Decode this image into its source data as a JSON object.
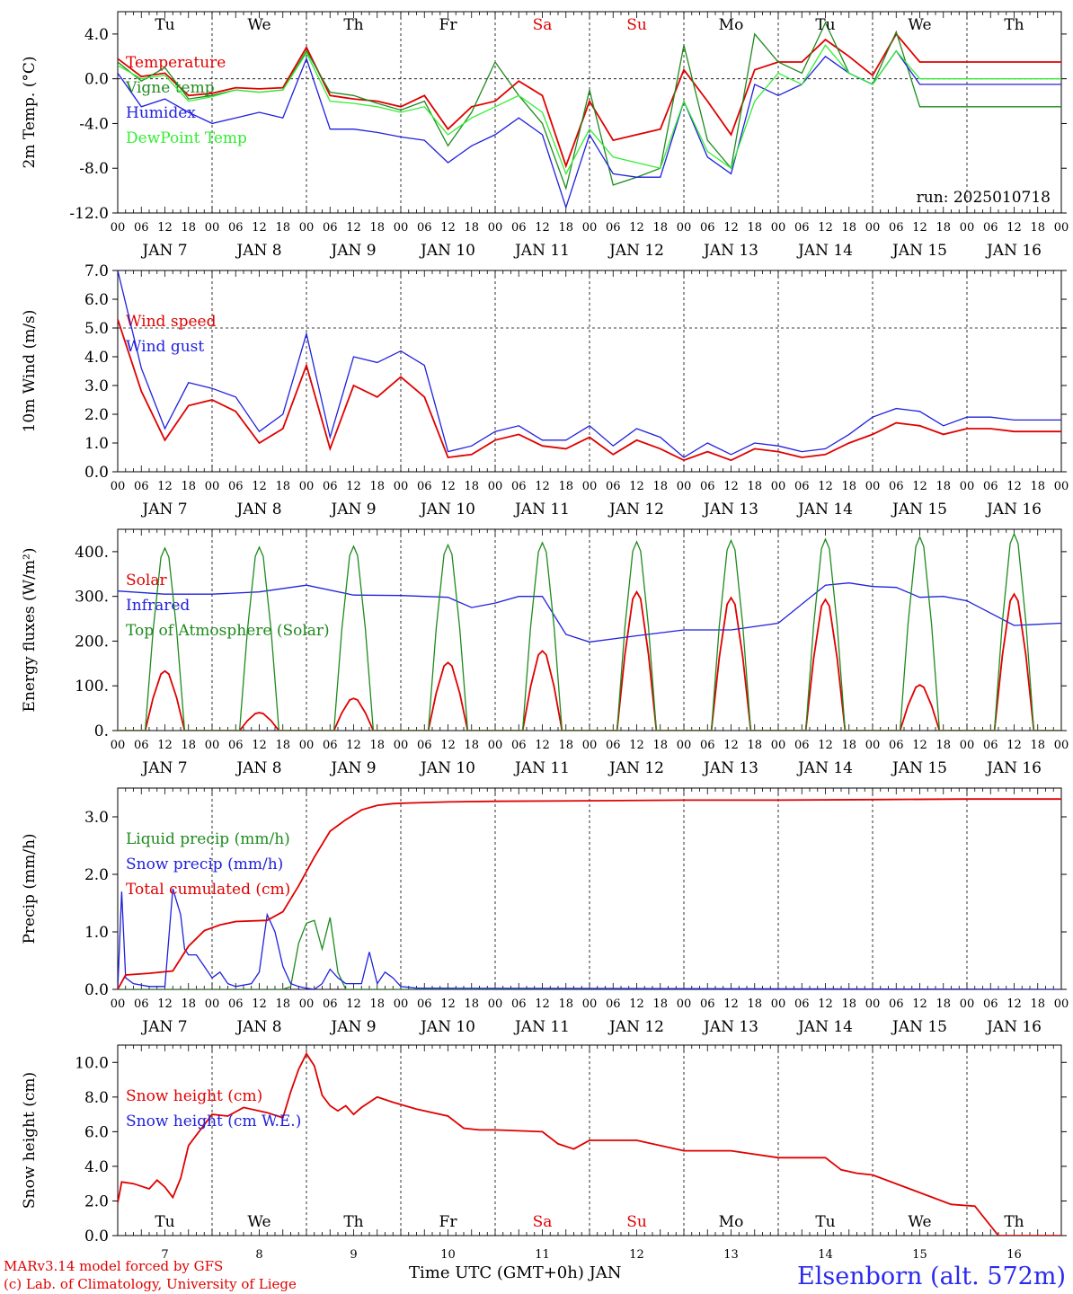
{
  "station": "Elsenborn (alt. 572m)",
  "credits": [
    "MARv3.14 model forced by GFS",
    "(c) Lab. of Climatology, University of Liege"
  ],
  "time_axis_label": "Time UTC (GMT+0h) JAN",
  "day_labels": [
    "Tu",
    "We",
    "Th",
    "Fr",
    "Sa",
    "Su",
    "Mo",
    "Tu",
    "We",
    "Th"
  ],
  "weekend_color": "#e00000",
  "hour_ticks": [
    "00",
    "06",
    "12",
    "18"
  ],
  "date_labels": [
    "JAN  7",
    "JAN  8",
    "JAN  9",
    "JAN 10",
    "JAN 11",
    "JAN 12",
    "JAN 13",
    "JAN 14",
    "JAN 15",
    "JAN 16"
  ],
  "bottom_dates": [
    "7",
    "8",
    "9",
    "10",
    "11",
    "12",
    "13",
    "14",
    "15",
    "16"
  ],
  "chart_data": [
    {
      "type": "line",
      "ylabel": "2m Temp. (°C)",
      "ylim": [
        -12,
        6
      ],
      "yticks": [
        "4.0",
        "0.0",
        "-4.0",
        "-8.0",
        "-12.0"
      ],
      "ytick_values": [
        4,
        0,
        -4,
        -8,
        -12
      ],
      "annotation": "run: 2025010718",
      "x_unit": "hours since JAN 7 00 UTC",
      "series": [
        {
          "name": "Temperature",
          "color": "#e00000",
          "x": [
            0,
            6,
            12,
            18,
            24,
            30,
            36,
            42,
            48,
            54,
            60,
            66,
            72,
            78,
            84,
            90,
            96,
            102,
            108,
            114,
            120,
            126,
            132,
            138,
            144,
            150,
            156,
            162,
            168,
            174,
            180,
            186,
            192,
            198,
            204,
            210,
            216,
            222,
            228,
            234,
            240
          ],
          "y": [
            1.8,
            0.2,
            0.5,
            -1.5,
            -1.3,
            -0.8,
            -0.9,
            -0.8,
            2.8,
            -1.5,
            -1.8,
            -2.0,
            -2.5,
            -1.5,
            -4.5,
            -2.5,
            -2.0,
            -0.2,
            -1.5,
            -7.8,
            -2.0,
            -5.5,
            -5.0,
            -4.5,
            0.8,
            -2.0,
            -5.0,
            0.8,
            1.5,
            1.5,
            3.5,
            2.0,
            0.3,
            4.0,
            1.5,
            1.5,
            1.5,
            1.5,
            1.5,
            1.5,
            1.5
          ]
        },
        {
          "name": "Vigne temp",
          "color": "#1e8a1e",
          "x": [
            0,
            6,
            12,
            18,
            24,
            30,
            36,
            42,
            48,
            54,
            60,
            66,
            72,
            78,
            84,
            90,
            96,
            102,
            108,
            114,
            120,
            126,
            132,
            138,
            144,
            150,
            156,
            162,
            168,
            174,
            180,
            186,
            192,
            198,
            204,
            210,
            216,
            222,
            228,
            234,
            240
          ],
          "y": [
            1.5,
            -0.2,
            1.0,
            -1.8,
            -1.5,
            -1.0,
            -1.2,
            -1.0,
            2.5,
            -1.2,
            -1.5,
            -2.2,
            -2.8,
            -2.0,
            -6.0,
            -3.0,
            1.5,
            -1.5,
            -4.0,
            -9.8,
            -1.0,
            -9.5,
            -8.8,
            -8.0,
            3.0,
            -5.5,
            -8.0,
            4.0,
            1.5,
            0.5,
            5.0,
            0.5,
            -0.5,
            4.2,
            -2.5,
            -2.5,
            -2.5,
            -2.5,
            -2.5,
            -2.5,
            -2.5
          ]
        },
        {
          "name": "Humidex",
          "color": "#2020dd",
          "x": [
            0,
            6,
            12,
            18,
            24,
            30,
            36,
            42,
            48,
            54,
            60,
            66,
            72,
            78,
            84,
            90,
            96,
            102,
            108,
            114,
            120,
            126,
            132,
            138,
            144,
            150,
            156,
            162,
            168,
            174,
            180,
            186,
            192,
            198,
            204,
            210,
            216,
            222,
            228,
            234,
            240
          ],
          "y": [
            0.5,
            -2.5,
            -1.8,
            -3.0,
            -4.0,
            -3.5,
            -3.0,
            -3.5,
            1.8,
            -4.5,
            -4.5,
            -4.8,
            -5.2,
            -5.5,
            -7.5,
            -6.0,
            -5.0,
            -3.5,
            -5.0,
            -11.5,
            -5.0,
            -8.5,
            -8.8,
            -8.8,
            -2.0,
            -7.0,
            -8.5,
            -0.5,
            -1.5,
            -0.5,
            2.0,
            0.5,
            -0.5,
            2.5,
            -0.5,
            -0.5,
            -0.5,
            -0.5,
            -0.5,
            -0.5,
            -0.5
          ]
        },
        {
          "name": "DewPoint Temp",
          "color": "#33ee33",
          "x": [
            0,
            6,
            12,
            18,
            24,
            30,
            36,
            42,
            48,
            54,
            60,
            66,
            72,
            78,
            84,
            90,
            96,
            102,
            108,
            114,
            120,
            126,
            132,
            138,
            144,
            150,
            156,
            162,
            168,
            174,
            180,
            186,
            192,
            198,
            204,
            210,
            216,
            222,
            228,
            234,
            240
          ],
          "y": [
            1.2,
            0.0,
            0.3,
            -2.0,
            -1.6,
            -1.0,
            -1.2,
            -1.0,
            2.3,
            -2.0,
            -2.2,
            -2.5,
            -3.0,
            -2.5,
            -5.0,
            -3.5,
            -2.5,
            -1.5,
            -3.0,
            -8.5,
            -4.5,
            -7.0,
            -7.5,
            -8.0,
            -2.0,
            -6.5,
            -8.0,
            -2.0,
            0.5,
            -0.5,
            3.0,
            0.5,
            -0.5,
            2.5,
            0.0,
            0.0,
            0.0,
            0.0,
            0.0,
            0.0,
            0.0
          ]
        }
      ]
    },
    {
      "type": "line",
      "ylabel": "10m Wind (m/s)",
      "ylim": [
        0,
        7
      ],
      "yticks": [
        "7.0",
        "6.0",
        "5.0",
        "4.0",
        "3.0",
        "2.0",
        "1.0",
        "0.0"
      ],
      "ytick_values": [
        7,
        6,
        5,
        4,
        3,
        2,
        1,
        0
      ],
      "x_unit": "hours since JAN 7 00 UTC",
      "series": [
        {
          "name": "Wind speed",
          "color": "#e00000",
          "x": [
            0,
            6,
            12,
            18,
            24,
            30,
            36,
            42,
            48,
            54,
            60,
            66,
            72,
            78,
            84,
            90,
            96,
            102,
            108,
            114,
            120,
            126,
            132,
            138,
            144,
            150,
            156,
            162,
            168,
            174,
            180,
            186,
            192,
            198,
            204,
            210,
            216,
            222,
            228,
            234,
            240
          ],
          "y": [
            5.3,
            2.8,
            1.1,
            2.3,
            2.5,
            2.1,
            1.0,
            1.5,
            3.7,
            0.8,
            3.0,
            2.6,
            3.3,
            2.6,
            0.5,
            0.6,
            1.1,
            1.3,
            0.9,
            0.8,
            1.2,
            0.6,
            1.1,
            0.8,
            0.4,
            0.7,
            0.4,
            0.8,
            0.7,
            0.5,
            0.6,
            1.0,
            1.3,
            1.7,
            1.6,
            1.3,
            1.5,
            1.5,
            1.4,
            1.4,
            1.4
          ]
        },
        {
          "name": "Wind gust",
          "color": "#2020dd",
          "x": [
            0,
            6,
            12,
            18,
            24,
            30,
            36,
            42,
            48,
            54,
            60,
            66,
            72,
            78,
            84,
            90,
            96,
            102,
            108,
            114,
            120,
            126,
            132,
            138,
            144,
            150,
            156,
            162,
            168,
            174,
            180,
            186,
            192,
            198,
            204,
            210,
            216,
            222,
            228,
            234,
            240
          ],
          "y": [
            7.0,
            3.6,
            1.5,
            3.1,
            2.9,
            2.6,
            1.4,
            2.0,
            4.8,
            1.2,
            4.0,
            3.8,
            4.2,
            3.7,
            0.7,
            0.9,
            1.4,
            1.6,
            1.1,
            1.1,
            1.6,
            0.9,
            1.5,
            1.2,
            0.5,
            1.0,
            0.6,
            1.0,
            0.9,
            0.7,
            0.8,
            1.3,
            1.9,
            2.2,
            2.1,
            1.6,
            1.9,
            1.9,
            1.8,
            1.8,
            1.8
          ]
        }
      ]
    },
    {
      "type": "line",
      "ylabel": "Energy fluxes (W/m²)",
      "ylim": [
        0,
        450
      ],
      "yticks": [
        "400.",
        "300.",
        "200.",
        "100.",
        "0."
      ],
      "ytick_values": [
        400,
        300,
        200,
        100,
        0
      ],
      "x_unit": "hours since JAN 7 00 UTC",
      "series": [
        {
          "name": "Solar",
          "color": "#e00000",
          "kind": "daily_peaks",
          "peaks": [
            133,
            40,
            72,
            152,
            178,
            310,
            297,
            293,
            102,
            305
          ]
        },
        {
          "name": "Infrared",
          "color": "#2020dd",
          "x": [
            0,
            12,
            24,
            36,
            48,
            60,
            72,
            84,
            90,
            96,
            102,
            108,
            114,
            120,
            132,
            144,
            156,
            168,
            180,
            186,
            192,
            198,
            204,
            210,
            216,
            228,
            240
          ],
          "y": [
            312,
            305,
            305,
            310,
            325,
            303,
            302,
            298,
            275,
            285,
            300,
            300,
            215,
            198,
            212,
            225,
            225,
            240,
            325,
            330,
            322,
            320,
            298,
            300,
            290,
            235,
            240
          ]
        },
        {
          "name": "Top of Atmosphere (Solar)",
          "color": "#1e8a1e",
          "kind": "daily_peaks",
          "peaks": [
            408,
            410,
            412,
            415,
            420,
            422,
            425,
            428,
            433,
            440
          ]
        }
      ]
    },
    {
      "type": "line",
      "ylabel": "Precip (mm/h)",
      "ylim": [
        0,
        3.5
      ],
      "yticks": [
        "3.0",
        "2.0",
        "1.0",
        "0.0"
      ],
      "ytick_values": [
        3,
        2,
        1,
        0
      ],
      "x_unit": "hours since JAN 7 00 UTC",
      "series": [
        {
          "name": "Liquid precip (mm/h)",
          "color": "#1e8a1e",
          "x": [
            0,
            38,
            40,
            42,
            44,
            46,
            48,
            50,
            52,
            54,
            56,
            58,
            60,
            62,
            64,
            240
          ],
          "y": [
            0,
            0,
            0,
            0,
            0.05,
            0.8,
            1.15,
            1.2,
            0.7,
            1.25,
            0.3,
            0,
            0,
            0,
            0,
            0
          ]
        },
        {
          "name": "Snow precip (mm/h)",
          "color": "#2020dd",
          "x": [
            0,
            1,
            2,
            4,
            8,
            12,
            14,
            16,
            17,
            18,
            20,
            22,
            24,
            26,
            28,
            30,
            34,
            36,
            38,
            40,
            42,
            44,
            46,
            48,
            50,
            52,
            54,
            56,
            58,
            60,
            62,
            64,
            66,
            68,
            70,
            72,
            76,
            80,
            84,
            240
          ],
          "y": [
            0,
            1.7,
            0.2,
            0.1,
            0.05,
            0.05,
            1.75,
            1.3,
            0.7,
            0.6,
            0.6,
            0.4,
            0.2,
            0.3,
            0.1,
            0.05,
            0.1,
            0.3,
            1.3,
            1.0,
            0.4,
            0.1,
            0.05,
            0.02,
            0.0,
            0.1,
            0.35,
            0.2,
            0.1,
            0.1,
            0.1,
            0.65,
            0.1,
            0.3,
            0.2,
            0.05,
            0.02,
            0.02,
            0.02,
            0.0
          ]
        },
        {
          "name": "Total cumulated (cm)",
          "color": "#e00000",
          "x": [
            0,
            2,
            8,
            14,
            18,
            22,
            26,
            30,
            38,
            42,
            46,
            50,
            54,
            58,
            62,
            66,
            70,
            74,
            84,
            96,
            120,
            144,
            168,
            192,
            216,
            240
          ],
          "y": [
            0,
            0.25,
            0.28,
            0.32,
            0.75,
            1.02,
            1.12,
            1.18,
            1.2,
            1.35,
            1.8,
            2.3,
            2.75,
            2.95,
            3.12,
            3.2,
            3.23,
            3.24,
            3.26,
            3.27,
            3.28,
            3.29,
            3.29,
            3.3,
            3.31,
            3.31
          ]
        }
      ]
    },
    {
      "type": "line",
      "ylabel": "Snow height (cm)",
      "ylim": [
        0,
        11
      ],
      "yticks": [
        "10.0",
        "8.0",
        "6.0",
        "4.0",
        "2.0",
        "0.0"
      ],
      "ytick_values": [
        10,
        8,
        6,
        4,
        2,
        0
      ],
      "x_unit": "hours since JAN 7 00 UTC",
      "series": [
        {
          "name": "Snow height (cm)",
          "color": "#e00000",
          "x": [
            0,
            1,
            4,
            8,
            10,
            12,
            14,
            16,
            18,
            20,
            22,
            24,
            28,
            32,
            38,
            42,
            44,
            46,
            48,
            50,
            52,
            54,
            56,
            58,
            60,
            62,
            66,
            70,
            76,
            84,
            88,
            92,
            96,
            108,
            112,
            116,
            120,
            132,
            144,
            156,
            168,
            180,
            184,
            188,
            192,
            212,
            218,
            224,
            240
          ],
          "y": [
            1.9,
            3.1,
            3.0,
            2.7,
            3.2,
            2.8,
            2.2,
            3.3,
            5.2,
            5.8,
            6.4,
            7.0,
            6.9,
            7.4,
            7.1,
            6.8,
            8.3,
            9.6,
            10.5,
            9.8,
            8.1,
            7.5,
            7.2,
            7.5,
            7.0,
            7.4,
            8.0,
            7.7,
            7.3,
            6.9,
            6.2,
            6.1,
            6.1,
            6.0,
            5.3,
            5.0,
            5.5,
            5.5,
            4.9,
            4.9,
            4.5,
            4.5,
            3.8,
            3.6,
            3.5,
            1.8,
            1.7,
            0,
            0
          ]
        },
        {
          "name": "Snow height (cm W.E.)",
          "color": "#2020dd",
          "x": [],
          "y": []
        }
      ]
    }
  ]
}
